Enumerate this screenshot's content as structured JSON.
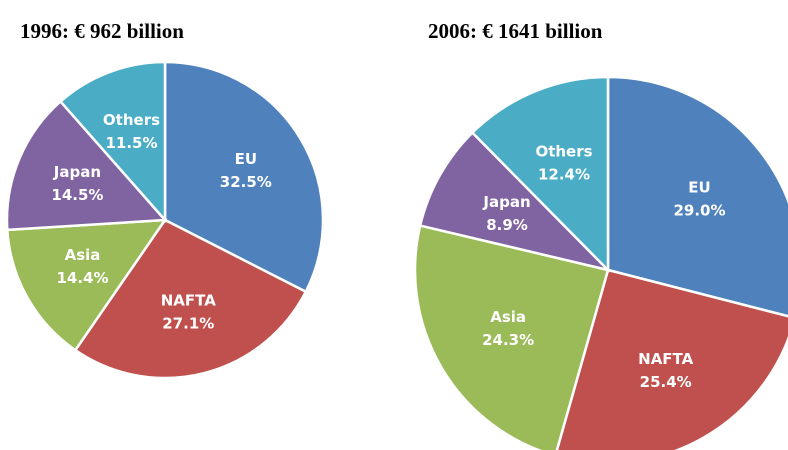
{
  "chart_data": [
    {
      "type": "pie",
      "title": "1996: € 962 billion",
      "categories": [
        "EU",
        "NAFTA",
        "Asia",
        "Japan",
        "Others"
      ],
      "values": [
        32.5,
        27.1,
        14.4,
        14.5,
        11.5
      ],
      "value_labels": [
        "32.5%",
        "27.1%",
        "14.4%",
        "14.5%",
        "11.5%"
      ],
      "colors": [
        "#4f81bd",
        "#c0504d",
        "#9bbb59",
        "#8064a2",
        "#4bacc6"
      ]
    },
    {
      "type": "pie",
      "title": "2006: € 1641 billion",
      "categories": [
        "EU",
        "NAFTA",
        "Asia",
        "Japan",
        "Others"
      ],
      "values": [
        29.0,
        25.4,
        24.3,
        8.9,
        12.4
      ],
      "value_labels": [
        "29.0%",
        "25.4%",
        "24.3%",
        "8.9%",
        "12.4%"
      ],
      "colors": [
        "#4f81bd",
        "#c0504d",
        "#9bbb59",
        "#8064a2",
        "#4bacc6"
      ]
    }
  ]
}
